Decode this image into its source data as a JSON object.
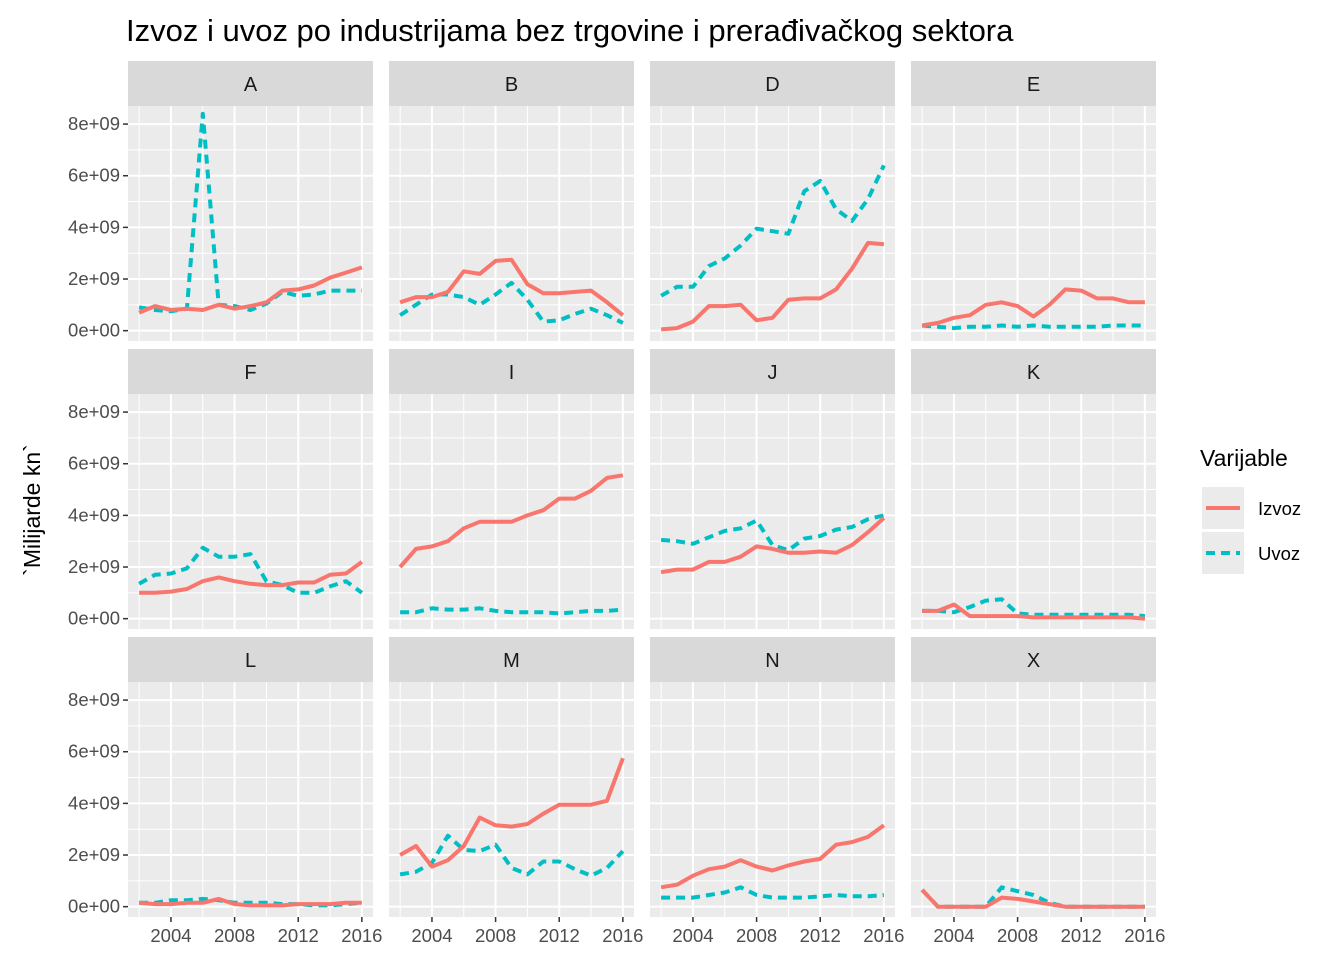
{
  "chart_data": {
    "type": "line",
    "title": "Izvoz i uvoz po industrijama bez trgovine i prerađivačkog sektora",
    "xlabel": "",
    "ylabel": "`Milijarde kn`",
    "x": [
      2002,
      2003,
      2004,
      2005,
      2006,
      2007,
      2008,
      2009,
      2010,
      2011,
      2012,
      2013,
      2014,
      2015,
      2016
    ],
    "x_ticks": [
      2004,
      2008,
      2012,
      2016
    ],
    "x_tick_labels": [
      "2004",
      "2008",
      "2012",
      "2016"
    ],
    "xlim": [
      2001.3,
      2016.7
    ],
    "y_ticks": [
      0,
      2000000000,
      4000000000,
      6000000000,
      8000000000
    ],
    "y_tick_labels": [
      "0e+00",
      "2e+09",
      "4e+09",
      "6e+09",
      "8e+09"
    ],
    "ylim": [
      -400000000,
      8700000000
    ],
    "grid": true,
    "legend": {
      "title": "Varijable",
      "placement": "right",
      "entries": [
        {
          "name": "Izvoz",
          "color": "#F8766D",
          "linetype": "solid"
        },
        {
          "name": "Uvoz",
          "color": "#00BFC4",
          "linetype": "dashed"
        }
      ]
    },
    "facets": [
      {
        "label": "A",
        "series": [
          {
            "name": "Izvoz",
            "values": [
              700000000,
              950000000,
              800000000,
              850000000,
              800000000,
              1000000000,
              850000000,
              950000000,
              1100000000,
              1550000000,
              1600000000,
              1750000000,
              2050000000,
              2250000000,
              2450000000
            ]
          },
          {
            "name": "Uvoz",
            "values": [
              900000000,
              800000000,
              750000000,
              850000000,
              8400000000,
              1000000000,
              950000000,
              800000000,
              1050000000,
              1500000000,
              1350000000,
              1400000000,
              1550000000,
              1550000000,
              1550000000
            ]
          }
        ]
      },
      {
        "label": "B",
        "series": [
          {
            "name": "Izvoz",
            "values": [
              1100000000,
              1300000000,
              1300000000,
              1500000000,
              2300000000,
              2200000000,
              2700000000,
              2750000000,
              1800000000,
              1450000000,
              1450000000,
              1500000000,
              1550000000,
              1100000000,
              600000000
            ]
          },
          {
            "name": "Uvoz",
            "values": [
              600000000,
              1000000000,
              1400000000,
              1400000000,
              1300000000,
              1000000000,
              1400000000,
              1850000000,
              1200000000,
              350000000,
              400000000,
              650000000,
              850000000,
              600000000,
              300000000
            ]
          }
        ]
      },
      {
        "label": "D",
        "series": [
          {
            "name": "Izvoz",
            "values": [
              50000000,
              100000000,
              350000000,
              950000000,
              950000000,
              1000000000,
              400000000,
              500000000,
              1200000000,
              1250000000,
              1250000000,
              1600000000,
              2400000000,
              3400000000,
              3350000000
            ]
          },
          {
            "name": "Uvoz",
            "values": [
              1350000000,
              1700000000,
              1700000000,
              2500000000,
              2800000000,
              3300000000,
              3950000000,
              3850000000,
              3750000000,
              5400000000,
              5800000000,
              4700000000,
              4250000000,
              5100000000,
              6400000000
            ]
          }
        ]
      },
      {
        "label": "E",
        "series": [
          {
            "name": "Izvoz",
            "values": [
              200000000,
              300000000,
              500000000,
              600000000,
              1000000000,
              1100000000,
              950000000,
              550000000,
              1000000000,
              1600000000,
              1550000000,
              1250000000,
              1250000000,
              1100000000,
              1100000000
            ]
          },
          {
            "name": "Uvoz",
            "values": [
              200000000,
              150000000,
              100000000,
              150000000,
              150000000,
              200000000,
              150000000,
              200000000,
              150000000,
              150000000,
              150000000,
              150000000,
              200000000,
              200000000,
              200000000
            ]
          }
        ]
      },
      {
        "label": "F",
        "series": [
          {
            "name": "Izvoz",
            "values": [
              1000000000,
              1000000000,
              1050000000,
              1150000000,
              1450000000,
              1600000000,
              1450000000,
              1350000000,
              1300000000,
              1300000000,
              1400000000,
              1400000000,
              1700000000,
              1750000000,
              2200000000
            ]
          },
          {
            "name": "Uvoz",
            "values": [
              1350000000,
              1700000000,
              1750000000,
              1950000000,
              2750000000,
              2400000000,
              2400000000,
              2500000000,
              1450000000,
              1300000000,
              1000000000,
              1000000000,
              1250000000,
              1450000000,
              1000000000
            ]
          }
        ]
      },
      {
        "label": "I",
        "series": [
          {
            "name": "Izvoz",
            "values": [
              2000000000,
              2700000000,
              2800000000,
              3000000000,
              3500000000,
              3750000000,
              3750000000,
              3750000000,
              4000000000,
              4200000000,
              4650000000,
              4650000000,
              4950000000,
              5450000000,
              5550000000
            ]
          },
          {
            "name": "Uvoz",
            "values": [
              250000000,
              250000000,
              400000000,
              350000000,
              350000000,
              400000000,
              300000000,
              250000000,
              250000000,
              250000000,
              200000000,
              250000000,
              300000000,
              300000000,
              350000000
            ]
          }
        ]
      },
      {
        "label": "J",
        "series": [
          {
            "name": "Izvoz",
            "values": [
              1800000000,
              1900000000,
              1900000000,
              2200000000,
              2200000000,
              2400000000,
              2800000000,
              2700000000,
              2550000000,
              2550000000,
              2600000000,
              2550000000,
              2850000000,
              3350000000,
              3900000000
            ]
          },
          {
            "name": "Uvoz",
            "values": [
              3050000000,
              3000000000,
              2900000000,
              3150000000,
              3400000000,
              3500000000,
              3800000000,
              2850000000,
              2650000000,
              3100000000,
              3200000000,
              3450000000,
              3550000000,
              3850000000,
              4000000000
            ]
          }
        ]
      },
      {
        "label": "K",
        "series": [
          {
            "name": "Izvoz",
            "values": [
              300000000,
              300000000,
              550000000,
              100000000,
              100000000,
              100000000,
              100000000,
              50000000,
              50000000,
              50000000,
              50000000,
              50000000,
              50000000,
              50000000,
              0
            ]
          },
          {
            "name": "Uvoz",
            "values": [
              300000000,
              300000000,
              250000000,
              450000000,
              700000000,
              750000000,
              200000000,
              150000000,
              150000000,
              150000000,
              150000000,
              150000000,
              150000000,
              150000000,
              100000000
            ]
          }
        ]
      },
      {
        "label": "L",
        "series": [
          {
            "name": "Izvoz",
            "values": [
              150000000,
              100000000,
              100000000,
              150000000,
              150000000,
              300000000,
              100000000,
              50000000,
              50000000,
              50000000,
              100000000,
              100000000,
              100000000,
              150000000,
              150000000
            ]
          },
          {
            "name": "Uvoz",
            "values": [
              150000000,
              150000000,
              250000000,
              250000000,
              300000000,
              250000000,
              150000000,
              150000000,
              150000000,
              100000000,
              100000000,
              50000000,
              50000000,
              100000000,
              150000000
            ]
          }
        ]
      },
      {
        "label": "M",
        "series": [
          {
            "name": "Izvoz",
            "values": [
              2000000000,
              2350000000,
              1550000000,
              1800000000,
              2350000000,
              3450000000,
              3150000000,
              3100000000,
              3200000000,
              3600000000,
              3950000000,
              3950000000,
              3950000000,
              4100000000,
              5750000000
            ]
          },
          {
            "name": "Uvoz",
            "values": [
              1250000000,
              1350000000,
              1700000000,
              2750000000,
              2200000000,
              2150000000,
              2400000000,
              1500000000,
              1250000000,
              1750000000,
              1750000000,
              1450000000,
              1200000000,
              1500000000,
              2150000000
            ]
          }
        ]
      },
      {
        "label": "N",
        "series": [
          {
            "name": "Izvoz",
            "values": [
              750000000,
              850000000,
              1200000000,
              1450000000,
              1550000000,
              1800000000,
              1550000000,
              1400000000,
              1600000000,
              1750000000,
              1850000000,
              2400000000,
              2500000000,
              2700000000,
              3150000000
            ]
          },
          {
            "name": "Uvoz",
            "values": [
              350000000,
              350000000,
              350000000,
              450000000,
              550000000,
              750000000,
              450000000,
              350000000,
              350000000,
              350000000,
              400000000,
              450000000,
              400000000,
              400000000,
              450000000
            ]
          }
        ]
      },
      {
        "label": "X",
        "series": [
          {
            "name": "Izvoz",
            "values": [
              650000000,
              0,
              0,
              0,
              0,
              350000000,
              300000000,
              200000000,
              100000000,
              0,
              0,
              0,
              0,
              0,
              0
            ]
          },
          {
            "name": "Uvoz",
            "values": [
              650000000,
              0,
              0,
              0,
              0,
              750000000,
              600000000,
              450000000,
              150000000,
              0,
              0,
              0,
              0,
              0,
              0
            ]
          }
        ]
      }
    ]
  }
}
